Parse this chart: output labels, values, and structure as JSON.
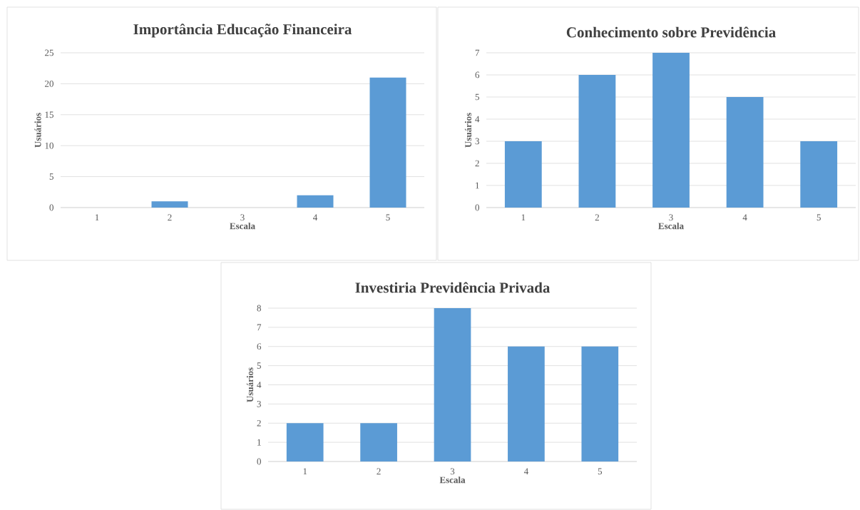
{
  "chart_data": [
    {
      "type": "bar",
      "title": "Importância Educação Financeira",
      "xlabel": "Escala",
      "ylabel": "Usuários",
      "categories": [
        "1",
        "2",
        "3",
        "4",
        "5"
      ],
      "values": [
        0,
        1,
        0,
        2,
        21
      ],
      "color": "#5b9bd5",
      "ylim": [
        0,
        25
      ],
      "yticks": [
        0,
        5,
        10,
        15,
        20,
        25
      ],
      "grid": "y"
    },
    {
      "type": "bar",
      "title": "Conhecimento sobre Previdência",
      "xlabel": "Escala",
      "ylabel": "Usuários",
      "categories": [
        "1",
        "2",
        "3",
        "4",
        "5"
      ],
      "values": [
        3,
        6,
        7,
        5,
        3
      ],
      "color": "#5b9bd5",
      "ylim": [
        0,
        7
      ],
      "yticks": [
        0,
        1,
        2,
        3,
        4,
        5,
        6,
        7
      ],
      "grid": "y"
    },
    {
      "type": "bar",
      "title": "Investiria Previdência Privada",
      "xlabel": "Escala",
      "ylabel": "Usuários",
      "categories": [
        "1",
        "2",
        "3",
        "4",
        "5"
      ],
      "values": [
        2,
        2,
        8,
        6,
        6
      ],
      "color": "#5b9bd5",
      "ylim": [
        0,
        8
      ],
      "yticks": [
        0,
        1,
        2,
        3,
        4,
        5,
        6,
        7,
        8
      ],
      "grid": "y"
    }
  ]
}
